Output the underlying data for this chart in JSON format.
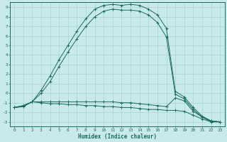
{
  "xlabel": "Humidex (Indice chaleur)",
  "bg_color": "#c8eaea",
  "grid_color": "#a8d4d0",
  "line_color": "#1a6b5a",
  "xlim": [
    -0.5,
    23.5
  ],
  "ylim": [
    -3.5,
    9.5
  ],
  "xticks": [
    0,
    1,
    2,
    3,
    4,
    5,
    6,
    7,
    8,
    9,
    10,
    11,
    12,
    13,
    14,
    15,
    16,
    17,
    18,
    19,
    20,
    21,
    22,
    23
  ],
  "yticks": [
    -3,
    -2,
    -1,
    0,
    1,
    2,
    3,
    4,
    5,
    6,
    7,
    8,
    9
  ],
  "curve1_x": [
    0,
    1,
    2,
    3,
    4,
    5,
    6,
    7,
    8,
    9,
    10,
    11,
    12,
    13,
    14,
    15,
    16,
    17,
    18,
    19,
    20,
    21,
    22,
    23
  ],
  "curve1_y": [
    -1.5,
    -1.4,
    -0.9,
    0.3,
    1.8,
    3.5,
    5.0,
    6.5,
    7.8,
    8.8,
    9.2,
    9.3,
    9.2,
    9.3,
    9.2,
    8.8,
    8.2,
    6.8,
    0.2,
    -0.4,
    -1.5,
    -2.4,
    -2.9,
    -3.0
  ],
  "curve2_x": [
    0,
    1,
    2,
    3,
    4,
    5,
    6,
    7,
    8,
    9,
    10,
    11,
    12,
    13,
    14,
    15,
    16,
    17,
    18,
    19,
    20,
    21,
    22,
    23
  ],
  "curve2_y": [
    -1.5,
    -1.4,
    -0.9,
    0.0,
    1.2,
    2.8,
    4.3,
    5.7,
    7.0,
    8.0,
    8.6,
    8.8,
    8.7,
    8.7,
    8.6,
    8.2,
    7.4,
    5.9,
    -0.1,
    -0.6,
    -1.7,
    -2.5,
    -2.9,
    -3.0
  ],
  "curve3_x": [
    0,
    1,
    2,
    3,
    4,
    5,
    6,
    7,
    8,
    9,
    10,
    11,
    12,
    13,
    14,
    15,
    16,
    17,
    18,
    19,
    20,
    21,
    22,
    23
  ],
  "curve3_y": [
    -1.5,
    -1.3,
    -0.9,
    -0.9,
    -0.9,
    -0.9,
    -0.9,
    -0.9,
    -0.9,
    -0.9,
    -0.9,
    -0.9,
    -1.0,
    -1.0,
    -1.1,
    -1.2,
    -1.3,
    -1.4,
    -0.5,
    -0.8,
    -1.9,
    -2.5,
    -3.0,
    -3.0
  ],
  "curve4_x": [
    0,
    1,
    2,
    3,
    4,
    5,
    6,
    7,
    8,
    9,
    10,
    11,
    12,
    13,
    14,
    15,
    16,
    17,
    18,
    19,
    20,
    21,
    22,
    23
  ],
  "curve4_y": [
    -1.5,
    -1.3,
    -0.9,
    -1.0,
    -1.1,
    -1.1,
    -1.2,
    -1.2,
    -1.3,
    -1.3,
    -1.4,
    -1.4,
    -1.5,
    -1.5,
    -1.6,
    -1.7,
    -1.7,
    -1.8,
    -1.8,
    -1.9,
    -2.3,
    -2.7,
    -3.0,
    -3.0
  ]
}
